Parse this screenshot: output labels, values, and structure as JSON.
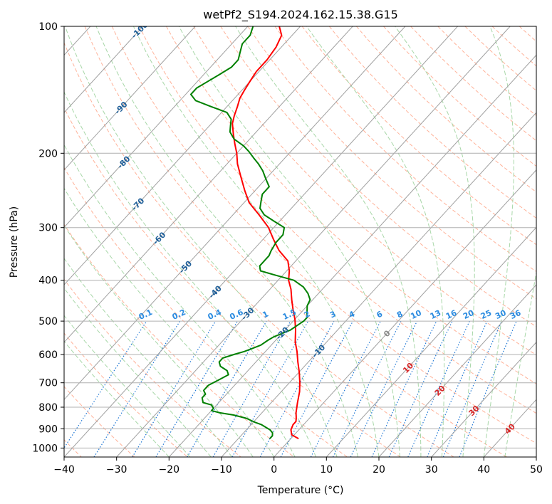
{
  "chart_data": {
    "type": "line",
    "subtype": "skew-T log-P diagram",
    "title": "wetPf2_S194.2024.162.15.38.G15",
    "xlabel": "Temperature (°C)",
    "ylabel": "Pressure (hPa)",
    "xlim": [
      -40,
      50
    ],
    "ylim": [
      1050,
      100
    ],
    "yscale": "log",
    "grid": true,
    "xticks": [
      "−40",
      "−30",
      "−20",
      "−10",
      "0",
      "10",
      "20",
      "30",
      "40",
      "50"
    ],
    "yticks": [
      "100",
      "200",
      "300",
      "400",
      "500",
      "600",
      "700",
      "800",
      "900",
      "1000"
    ],
    "colors": {
      "temperature": "#ff0000",
      "dewpoint": "#008000",
      "dry_adiabats": "#ff9f80",
      "moist_adiabats": "#9fd39f",
      "mixing_ratio": "#1f77d4",
      "isotherms": "#a0a0a0",
      "grid": "#b0b0b0",
      "cold_label": "#1f5f99",
      "warm_label": "#d62728"
    },
    "series": [
      {
        "key": "temperature",
        "points": [
          [
            1.5,
            950
          ],
          [
            -0.5,
            930
          ],
          [
            -1.5,
            905
          ],
          [
            -2,
            880
          ],
          [
            -2,
            865
          ],
          [
            -2.5,
            850
          ],
          [
            -3.5,
            825
          ],
          [
            -5,
            780
          ],
          [
            -6.5,
            735
          ],
          [
            -8,
            700
          ],
          [
            -10,
            660
          ],
          [
            -12,
            625
          ],
          [
            -14,
            590
          ],
          [
            -16,
            560
          ],
          [
            -18,
            525
          ],
          [
            -20,
            495
          ],
          [
            -22,
            470
          ],
          [
            -24,
            445
          ],
          [
            -26,
            420
          ],
          [
            -28,
            400
          ],
          [
            -29.5,
            380
          ],
          [
            -31.5,
            360
          ],
          [
            -35,
            340
          ],
          [
            -38,
            320
          ],
          [
            -41,
            300
          ],
          [
            -45,
            280
          ],
          [
            -49,
            262
          ],
          [
            -52,
            245
          ],
          [
            -55,
            228
          ],
          [
            -58,
            212
          ],
          [
            -60,
            200
          ],
          [
            -62,
            190
          ],
          [
            -64,
            180
          ],
          [
            -66,
            170
          ],
          [
            -67,
            163
          ],
          [
            -68,
            155
          ],
          [
            -69,
            148
          ],
          [
            -69.5,
            142
          ],
          [
            -70,
            135
          ],
          [
            -70.5,
            128
          ],
          [
            -70.5,
            120
          ],
          [
            -71,
            112
          ],
          [
            -72,
            105
          ],
          [
            -74,
            100
          ]
        ]
      },
      {
        "key": "dewpoint",
        "points": [
          [
            -4,
            950
          ],
          [
            -4,
            935
          ],
          [
            -4.5,
            920
          ],
          [
            -5.5,
            905
          ],
          [
            -7,
            890
          ],
          [
            -8,
            880
          ],
          [
            -9.5,
            870
          ],
          [
            -12,
            850
          ],
          [
            -15,
            835
          ],
          [
            -18,
            825
          ],
          [
            -20,
            815
          ],
          [
            -20,
            805
          ],
          [
            -21,
            790
          ],
          [
            -23,
            780
          ],
          [
            -24,
            760
          ],
          [
            -24,
            745
          ],
          [
            -25,
            730
          ],
          [
            -25,
            710
          ],
          [
            -24,
            690
          ],
          [
            -23,
            670
          ],
          [
            -24,
            655
          ],
          [
            -26,
            640
          ],
          [
            -27,
            625
          ],
          [
            -27,
            612
          ],
          [
            -25.5,
            600
          ],
          [
            -24,
            590
          ],
          [
            -23,
            580
          ],
          [
            -22,
            570
          ],
          [
            -21.5,
            555
          ],
          [
            -21,
            545
          ],
          [
            -20,
            535
          ],
          [
            -19,
            525
          ],
          [
            -18.5,
            512
          ],
          [
            -18,
            500
          ],
          [
            -18,
            490
          ],
          [
            -19,
            475
          ],
          [
            -20,
            460
          ],
          [
            -20.5,
            445
          ],
          [
            -22,
            430
          ],
          [
            -24,
            415
          ],
          [
            -27,
            400
          ],
          [
            -31,
            390
          ],
          [
            -35,
            380
          ],
          [
            -36,
            370
          ],
          [
            -36,
            360
          ],
          [
            -36,
            350
          ],
          [
            -36.5,
            340
          ],
          [
            -37,
            325
          ],
          [
            -37,
            312
          ],
          [
            -38,
            300
          ],
          [
            -41,
            290
          ],
          [
            -44,
            280
          ],
          [
            -46,
            270
          ],
          [
            -47,
            260
          ],
          [
            -48,
            250
          ],
          [
            -48,
            240
          ],
          [
            -50,
            230
          ],
          [
            -52,
            220
          ],
          [
            -54,
            212
          ],
          [
            -56,
            205
          ],
          [
            -58,
            198
          ],
          [
            -60,
            192
          ],
          [
            -63,
            185
          ],
          [
            -65,
            178
          ],
          [
            -66,
            172
          ],
          [
            -67,
            166
          ],
          [
            -69,
            160
          ],
          [
            -73,
            155
          ],
          [
            -77,
            150
          ],
          [
            -79,
            145
          ],
          [
            -79,
            140
          ],
          [
            -78,
            135
          ],
          [
            -77,
            130
          ],
          [
            -76,
            125
          ],
          [
            -76,
            120
          ],
          [
            -77,
            115
          ],
          [
            -78,
            110
          ],
          [
            -78,
            105
          ],
          [
            -79,
            100
          ]
        ]
      }
    ],
    "isotherm_labels": [
      "-100",
      "-90",
      "-80",
      "-70",
      "-60",
      "-50",
      "-40",
      "-30",
      "-20",
      "-10",
      "0",
      "10",
      "20",
      "30",
      "40"
    ],
    "mixing_ratio_labels": [
      "0.1",
      "0.2",
      "0.4",
      "0.6",
      "1",
      "1.5",
      "2",
      "3",
      "4",
      "6",
      "8",
      "10",
      "13",
      "16",
      "20",
      "25",
      "30",
      "36"
    ]
  }
}
